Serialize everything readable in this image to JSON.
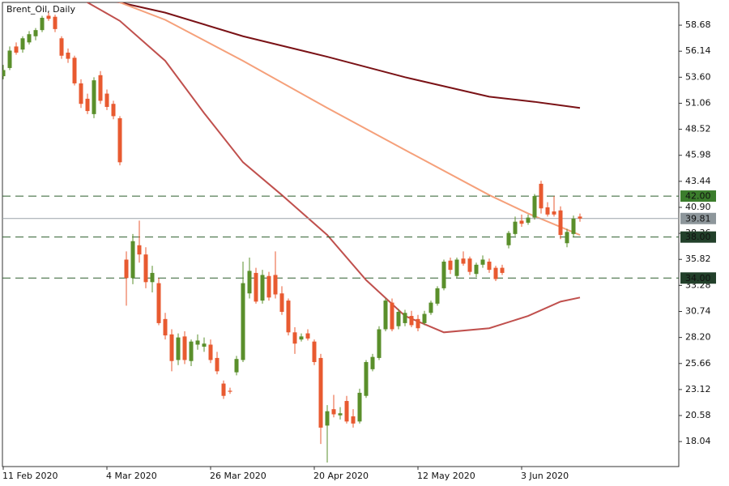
{
  "chart_data": {
    "type": "candlestick",
    "title": "Brent_Oil, Daily",
    "categories": [
      "11 Feb 2020",
      null,
      null,
      null,
      null,
      null,
      null,
      null,
      null,
      null,
      null,
      null,
      null,
      null,
      null,
      null,
      "4 Mar 2020",
      null,
      null,
      null,
      null,
      null,
      null,
      null,
      null,
      null,
      null,
      null,
      null,
      null,
      null,
      null,
      "26 Mar 2020",
      null,
      null,
      null,
      null,
      null,
      null,
      null,
      null,
      null,
      null,
      null,
      null,
      null,
      null,
      null,
      "20 Apr 2020",
      null,
      null,
      null,
      null,
      null,
      null,
      null,
      null,
      null,
      null,
      null,
      null,
      null,
      null,
      null,
      "12 May 2020",
      null,
      null,
      null,
      null,
      null,
      null,
      null,
      null,
      null,
      null,
      null,
      null,
      null,
      null,
      null,
      "3 Jun 2020",
      null,
      null,
      null,
      null,
      null,
      null,
      null,
      null,
      null
    ],
    "open": [
      53.7,
      54.5,
      56.6,
      56.3,
      57.0,
      57.6,
      58.2,
      59.6,
      59.5,
      57.4,
      56.0,
      55.5,
      53.0,
      51.5,
      50.0,
      53.8,
      52.0,
      51.0,
      49.6,
      35.8,
      34.0,
      37.2,
      36.3,
      33.6,
      33.5,
      30.0,
      28.5,
      26.0,
      28.3,
      25.9,
      27.5,
      27.3,
      27.5,
      26.2,
      23.7,
      23.0,
      24.8,
      26.0,
      32.5,
      34.5,
      31.8,
      34.2,
      34.3,
      32.5,
      31.8,
      28.7,
      28.0,
      28.6,
      27.8,
      26.2,
      19.6,
      21.2,
      20.6,
      22.0,
      20.5,
      20.0,
      22.5,
      25.1,
      26.2,
      29.0,
      31.6,
      29.3,
      29.6,
      30.3,
      30.0,
      29.6,
      30.6,
      31.5,
      33.0,
      35.7,
      34.2,
      35.9,
      35.9,
      34.4,
      35.3,
      35.6,
      35.0,
      35.0,
      37.2,
      38.3,
      39.6,
      39.4,
      39.9,
      43.2,
      40.9,
      40.5,
      40.6,
      37.4,
      38.3,
      40.0
    ],
    "high": [
      54.8,
      56.6,
      57.0,
      57.6,
      58.1,
      58.4,
      59.6,
      59.9,
      59.7,
      57.6,
      56.4,
      55.7,
      53.4,
      52.0,
      53.6,
      54.2,
      52.4,
      51.3,
      49.8,
      36.6,
      38.3,
      39.6,
      37.0,
      35.2,
      34.0,
      30.6,
      29.0,
      28.6,
      28.8,
      28.0,
      28.5,
      28.2,
      28.0,
      26.8,
      24.0,
      23.3,
      26.4,
      35.6,
      36.0,
      35.0,
      34.8,
      34.6,
      36.6,
      33.2,
      32.0,
      29.2,
      28.6,
      29.0,
      28.0,
      26.6,
      21.6,
      22.6,
      21.4,
      22.5,
      21.2,
      23.2,
      26.0,
      26.6,
      29.3,
      32.0,
      32.0,
      31.0,
      30.9,
      30.8,
      30.4,
      30.8,
      31.8,
      33.2,
      35.8,
      36.0,
      36.0,
      36.6,
      36.1,
      35.5,
      36.2,
      35.9,
      35.2,
      35.3,
      38.6,
      40.0,
      40.2,
      40.2,
      42.2,
      43.5,
      41.4,
      42.0,
      41.0,
      38.8,
      40.1,
      40.3
    ],
    "low": [
      53.4,
      54.3,
      55.8,
      56.0,
      56.8,
      57.2,
      58.0,
      59.1,
      58.0,
      55.4,
      55.0,
      52.8,
      50.6,
      50.0,
      49.6,
      51.0,
      50.4,
      49.5,
      45.0,
      31.3,
      33.4,
      35.5,
      33.0,
      32.6,
      29.4,
      28.0,
      24.9,
      25.5,
      25.6,
      25.4,
      27.0,
      26.8,
      25.7,
      24.6,
      22.2,
      22.7,
      24.5,
      25.8,
      32.0,
      31.5,
      31.5,
      31.8,
      32.0,
      30.4,
      28.4,
      26.6,
      27.8,
      27.9,
      25.5,
      17.8,
      16.0,
      20.4,
      20.2,
      19.8,
      19.4,
      19.8,
      22.3,
      24.9,
      26.0,
      28.8,
      28.8,
      29.0,
      29.3,
      29.2,
      28.8,
      29.4,
      30.4,
      31.3,
      32.8,
      34.4,
      34.0,
      35.2,
      34.3,
      34.1,
      35.0,
      34.5,
      33.7,
      34.3,
      36.9,
      38.1,
      39.0,
      39.2,
      39.7,
      40.3,
      40.0,
      40.0,
      37.8,
      37.0,
      38.0,
      39.5
    ],
    "close": [
      54.3,
      56.2,
      56.0,
      57.4,
      57.8,
      58.2,
      59.4,
      59.3,
      58.3,
      55.7,
      55.4,
      53.0,
      51.0,
      50.3,
      53.3,
      51.3,
      50.7,
      49.8,
      45.3,
      34.0,
      37.6,
      36.3,
      33.6,
      34.5,
      29.6,
      28.4,
      25.9,
      28.2,
      26.0,
      27.8,
      27.9,
      27.6,
      26.0,
      24.9,
      22.5,
      22.9,
      26.1,
      33.5,
      34.7,
      31.7,
      34.3,
      32.1,
      32.4,
      30.7,
      28.7,
      27.6,
      28.3,
      28.1,
      25.8,
      19.4,
      21.0,
      20.7,
      20.8,
      20.0,
      19.8,
      22.8,
      25.8,
      26.3,
      29.0,
      31.8,
      29.0,
      30.7,
      30.6,
      29.4,
      29.1,
      30.5,
      31.6,
      33.0,
      35.6,
      34.8,
      35.8,
      35.4,
      34.6,
      35.3,
      35.8,
      34.8,
      33.9,
      34.5,
      38.4,
      39.5,
      39.3,
      39.9,
      42.0,
      40.8,
      40.2,
      40.2,
      38.2,
      38.5,
      39.8,
      39.81
    ],
    "up_color": "#5a8f2b",
    "down_color": "#e85a30",
    "lines": [
      {
        "color": "#7a1216",
        "x": [
          0,
          10,
          18,
          25,
          37,
          50,
          62,
          75,
          82,
          89
        ],
        "values": [
          63.0,
          62.0,
          60.9,
          59.9,
          57.6,
          55.6,
          53.6,
          51.7,
          51.2,
          50.6
        ]
      },
      {
        "color": "#f5a07a",
        "x": [
          12,
          18,
          25,
          37,
          50,
          62,
          75,
          81,
          89
        ],
        "values": [
          63.0,
          60.9,
          59.2,
          55.2,
          50.6,
          46.5,
          42.1,
          40.3,
          38.2
        ]
      },
      {
        "color": "#c0504d",
        "x": [
          10,
          13,
          18,
          25,
          31,
          37,
          43,
          50,
          56,
          62,
          68,
          75,
          81,
          86,
          89
        ],
        "values": [
          62.5,
          60.9,
          59.1,
          55.2,
          50.1,
          45.3,
          42.1,
          38.2,
          33.8,
          30.3,
          28.7,
          29.1,
          30.3,
          31.7,
          32.1
        ]
      }
    ],
    "levels": [
      {
        "value": 42,
        "label": "42.00"
      },
      {
        "value": 38,
        "label": "38.00"
      },
      {
        "value": 34,
        "label": "34.00"
      }
    ],
    "level_color": "#2f5f2f",
    "last_price": 39.81,
    "ylim": [
      15.6,
      60.9
    ],
    "yticks": [
      58.68,
      56.14,
      {
        "value": 53.6,
        "label": "53.60"
      },
      51.06,
      48.52,
      45.98,
      43.44,
      {
        "value": 40.9,
        "label": "40.90"
      },
      38.36,
      35.82,
      33.28,
      30.74,
      {
        "value": 28.2,
        "label": "28.20"
      },
      25.66,
      23.12,
      20.58,
      18.04
    ]
  }
}
